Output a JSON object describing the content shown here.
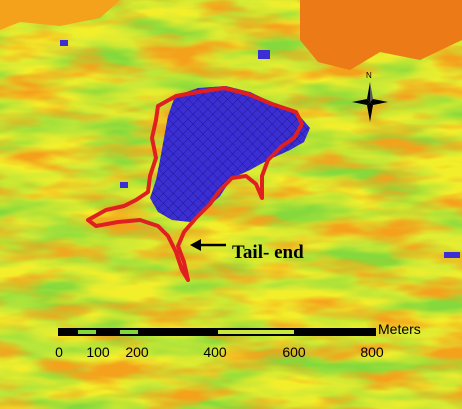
{
  "map": {
    "palette": {
      "green": "#86d93c",
      "yellow_green": "#c9ea3a",
      "yellow": "#f2ee2c",
      "orange": "#f4a21c",
      "dark_orange": "#ec7a17",
      "blue": "#3b2fd3",
      "boundary_red": "#e02020"
    },
    "north_arrow": {
      "label": "N",
      "icon": "compass-rose-icon"
    },
    "scale_bar": {
      "units": "Meters",
      "ticks": [
        "0",
        "100",
        "200",
        "400",
        "600",
        "800"
      ]
    },
    "annotation": {
      "label": "Tail- end",
      "icon": "left-arrow-icon"
    }
  }
}
